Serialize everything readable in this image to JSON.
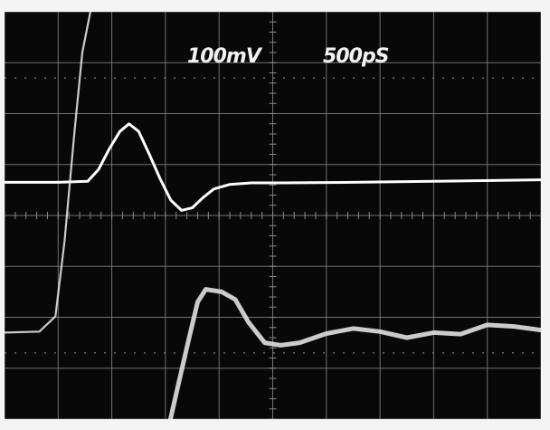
{
  "screen": {
    "background_color": "#080808",
    "bezel_color": "#f4f4f4",
    "graticule_color": "#8a8a8a",
    "trace_color": "#ffffff"
  },
  "chart_data": {
    "type": "line",
    "title": "",
    "xlabel": "",
    "ylabel": "",
    "grid": true,
    "legend": "none",
    "annotations": {
      "vertical_scale": "100mV",
      "horizontal_scale": "500pS"
    },
    "units_per_division": {
      "x_ps": 500,
      "y_mv": 100
    },
    "xlim_divisions": [
      0,
      10
    ],
    "ylim_divisions": [
      0,
      8
    ],
    "series": [
      {
        "color": "#ffffff",
        "points": [
          [
            0.0,
            4.65
          ],
          [
            1.0,
            4.65
          ],
          [
            1.55,
            4.67
          ],
          [
            1.75,
            4.9
          ],
          [
            1.95,
            5.3
          ],
          [
            2.15,
            5.65
          ],
          [
            2.32,
            5.8
          ],
          [
            2.5,
            5.65
          ],
          [
            2.7,
            5.2
          ],
          [
            2.9,
            4.72
          ],
          [
            3.1,
            4.3
          ],
          [
            3.3,
            4.1
          ],
          [
            3.5,
            4.15
          ],
          [
            3.7,
            4.35
          ],
          [
            3.9,
            4.52
          ],
          [
            4.2,
            4.61
          ],
          [
            4.6,
            4.64
          ],
          [
            5.2,
            4.64
          ],
          [
            6.5,
            4.65
          ],
          [
            8.0,
            4.67
          ],
          [
            10.0,
            4.7
          ]
        ]
      },
      {
        "color": "#e6e6e6",
        "points": [
          [
            0.0,
            1.7
          ],
          [
            0.65,
            1.72
          ],
          [
            0.95,
            2.02
          ],
          [
            1.12,
            3.5
          ],
          [
            1.3,
            5.6
          ],
          [
            1.45,
            7.2
          ],
          [
            1.6,
            8.0
          ]
        ]
      },
      {
        "color": "#e6e6e6",
        "points": [
          [
            3.05,
            -0.2
          ],
          [
            3.2,
            0.5
          ],
          [
            3.42,
            1.5
          ],
          [
            3.6,
            2.3
          ],
          [
            3.75,
            2.55
          ],
          [
            4.05,
            2.5
          ],
          [
            4.3,
            2.35
          ],
          [
            4.55,
            1.9
          ],
          [
            4.85,
            1.5
          ],
          [
            5.15,
            1.45
          ],
          [
            5.5,
            1.5
          ],
          [
            6.0,
            1.68
          ],
          [
            6.5,
            1.78
          ],
          [
            7.0,
            1.72
          ],
          [
            7.5,
            1.6
          ],
          [
            8.0,
            1.7
          ],
          [
            8.5,
            1.67
          ],
          [
            9.0,
            1.85
          ],
          [
            9.5,
            1.82
          ],
          [
            10.0,
            1.75
          ]
        ]
      }
    ]
  }
}
